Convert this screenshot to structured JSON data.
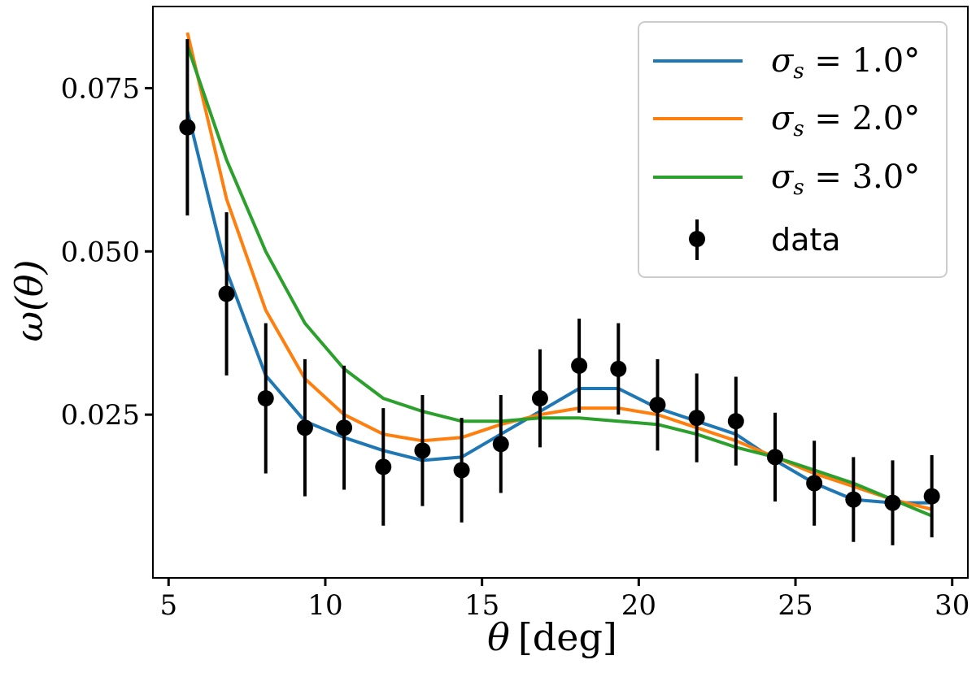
{
  "chart_data": {
    "type": "line",
    "xlabel": "θ [deg]",
    "xlabel_var": "θ",
    "xlabel_unit": "[deg]",
    "ylabel": "ω(θ)",
    "xlim": [
      4.5,
      30.5
    ],
    "ylim": [
      0.0,
      0.0875
    ],
    "xticks": [
      5,
      10,
      15,
      20,
      25,
      30
    ],
    "xtick_labels": [
      "5",
      "10",
      "15",
      "20",
      "25",
      "30"
    ],
    "yticks": [
      0.025,
      0.05,
      0.075
    ],
    "ytick_labels": [
      "0.025",
      "0.050",
      "0.075"
    ],
    "legend_position": "top-right",
    "x": [
      5.6,
      6.85,
      8.1,
      9.35,
      10.6,
      11.85,
      13.1,
      14.35,
      15.6,
      16.85,
      18.1,
      19.35,
      20.6,
      21.85,
      23.1,
      24.35,
      25.6,
      26.85,
      28.1,
      29.35
    ],
    "series": [
      {
        "name": "σs = 1.0°",
        "label_sym": "σ",
        "label_sub": "s",
        "label_rest": " = 1.0°",
        "color": "#1f77b4",
        "values": [
          0.0715,
          0.047,
          0.031,
          0.024,
          0.0215,
          0.0195,
          0.018,
          0.0185,
          0.022,
          0.0255,
          0.029,
          0.029,
          0.026,
          0.024,
          0.022,
          0.018,
          0.0145,
          0.012,
          0.0115,
          0.0115
        ]
      },
      {
        "name": "σs = 2.0°",
        "label_sym": "σ",
        "label_sub": "s",
        "label_rest": " = 2.0°",
        "color": "#ff7f0e",
        "values": [
          0.0835,
          0.058,
          0.041,
          0.0305,
          0.025,
          0.022,
          0.021,
          0.0215,
          0.0235,
          0.025,
          0.026,
          0.026,
          0.025,
          0.023,
          0.021,
          0.0185,
          0.016,
          0.014,
          0.012,
          0.0105
        ]
      },
      {
        "name": "σs = 3.0°",
        "label_sym": "σ",
        "label_sub": "s",
        "label_rest": " = 3.0°",
        "color": "#2ca02c",
        "values": [
          0.0815,
          0.064,
          0.05,
          0.039,
          0.032,
          0.0275,
          0.0255,
          0.024,
          0.024,
          0.0245,
          0.0245,
          0.024,
          0.0235,
          0.022,
          0.02,
          0.0185,
          0.0165,
          0.0145,
          0.012,
          0.0095
        ]
      }
    ],
    "data": {
      "name": "data",
      "color": "#000000",
      "values": [
        0.069,
        0.0435,
        0.0275,
        0.023,
        0.023,
        0.017,
        0.0195,
        0.0165,
        0.0205,
        0.0275,
        0.0325,
        0.032,
        0.0265,
        0.0245,
        0.024,
        0.0185,
        0.0145,
        0.012,
        0.0115,
        0.0125
      ],
      "errors": [
        0.0135,
        0.0125,
        0.0115,
        0.0105,
        0.0095,
        0.009,
        0.0085,
        0.008,
        0.0075,
        0.0075,
        0.0072,
        0.007,
        0.007,
        0.0068,
        0.0068,
        0.0068,
        0.0065,
        0.0065,
        0.0065,
        0.0063
      ]
    }
  }
}
